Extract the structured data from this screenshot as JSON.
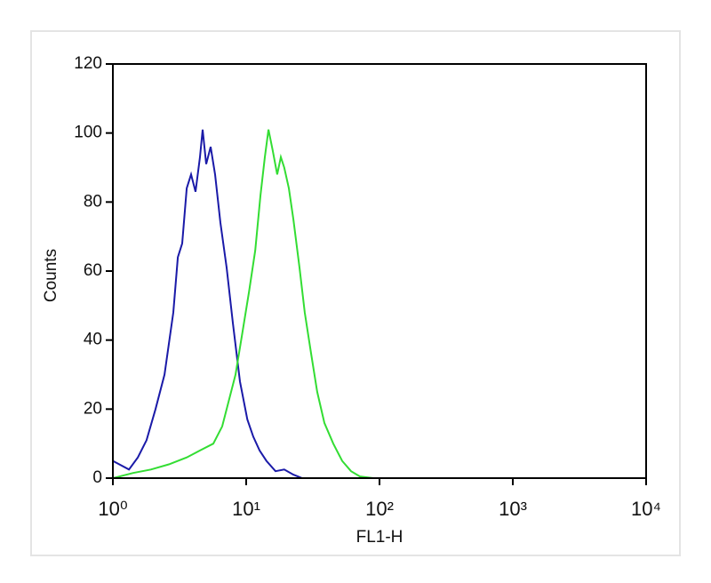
{
  "chart_data": {
    "type": "line",
    "xlabel": "FL1-H",
    "ylabel": "Counts",
    "xscale": "log",
    "xlim": [
      1,
      10000
    ],
    "ylim": [
      0,
      120
    ],
    "xticks": [
      {
        "value": 1,
        "label": "10⁰"
      },
      {
        "value": 10,
        "label": "10¹"
      },
      {
        "value": 100,
        "label": "10²"
      },
      {
        "value": 1000,
        "label": "10³"
      },
      {
        "value": 10000,
        "label": "10⁴"
      }
    ],
    "yticks": [
      0,
      20,
      40,
      60,
      80,
      100,
      120
    ],
    "series": [
      {
        "color": "#1a1aa8",
        "x": [
          1.0,
          1.32,
          1.54,
          1.79,
          2.09,
          2.44,
          2.84,
          3.07,
          3.31,
          3.58,
          3.86,
          4.17,
          4.5,
          4.71,
          5.01,
          5.41,
          5.84,
          6.41,
          7.13,
          7.94,
          8.98,
          10.2,
          11.3,
          12.6,
          14.2,
          16.6,
          19.3,
          22.6,
          26.3,
          10000
        ],
        "values": [
          5,
          2.5,
          6,
          11,
          20,
          30,
          48,
          64,
          68,
          84,
          88,
          83,
          93,
          101,
          91,
          96,
          88,
          74,
          61,
          45,
          28,
          17,
          12,
          8,
          5,
          2,
          2.5,
          1,
          0,
          0
        ]
      },
      {
        "color": "#33dd33",
        "x": [
          1.0,
          1.42,
          1.93,
          2.63,
          3.58,
          4.5,
          5.67,
          6.61,
          7.47,
          8.32,
          9.26,
          10.5,
          11.7,
          12.8,
          13.8,
          14.7,
          15.8,
          17.1,
          18.2,
          19.3,
          20.9,
          22.6,
          25.1,
          27.5,
          30.7,
          34.1,
          38.6,
          45.0,
          52.5,
          61.2,
          71.3,
          89.8,
          10000
        ],
        "values": [
          0,
          1.5,
          2.5,
          4,
          6,
          8,
          10,
          15,
          23,
          30,
          41,
          54,
          66,
          82,
          93,
          101,
          95,
          88,
          93,
          90,
          84,
          75,
          61,
          48,
          36,
          25,
          16,
          10,
          5,
          2,
          0.5,
          0,
          0
        ]
      }
    ]
  }
}
